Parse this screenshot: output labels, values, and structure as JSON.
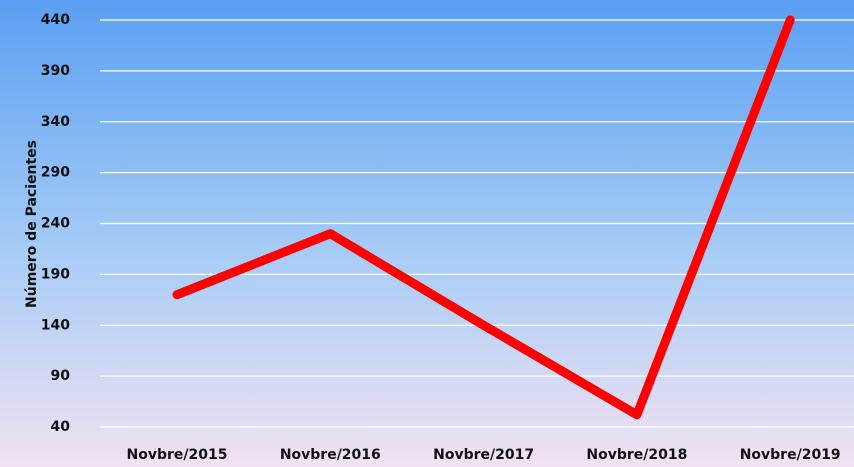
{
  "chart_data": {
    "type": "line",
    "y_label": "Número de Pacientes",
    "categories": [
      "Novbre/2015",
      "Novbre/2016",
      "Novbre/2017",
      "Novbre/2018",
      "Novbre/2019"
    ],
    "values": [
      170,
      230,
      140,
      52,
      440
    ],
    "color": "#ff0000",
    "ylim": [
      40,
      440
    ],
    "yticks": [
      40,
      90,
      140,
      190,
      240,
      290,
      340,
      390,
      440
    ],
    "grid": true
  }
}
